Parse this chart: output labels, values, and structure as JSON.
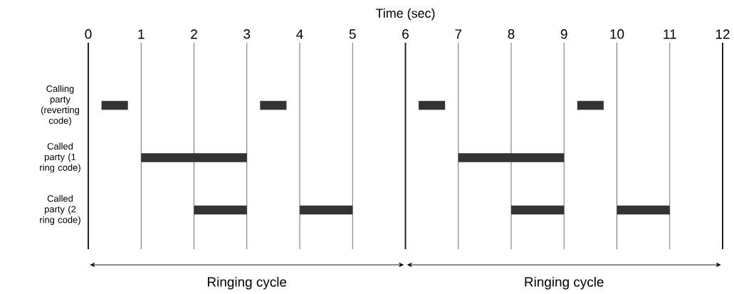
{
  "chart_data": {
    "type": "bar",
    "orientation": "horizontal",
    "xlabel": "Time (sec)",
    "categories": [
      "Calling party (reverting code)",
      "Called party (1 ring code)",
      "Called party (2 ring code)"
    ],
    "series": [
      {
        "color": "#333333",
        "base": [
          0.25,
          1,
          2
        ],
        "values": [
          0.5,
          2,
          1
        ]
      },
      {
        "color": "#333333",
        "base": [
          3.25,
          7,
          4
        ],
        "values": [
          0.5,
          2,
          1
        ]
      },
      {
        "color": "#333333",
        "base": [
          6.25,
          null,
          8
        ],
        "values": [
          0.5,
          null,
          1
        ]
      },
      {
        "color": "#333333",
        "base": [
          9.25,
          null,
          10
        ],
        "values": [
          0.5,
          null,
          1
        ]
      }
    ],
    "xlim": [
      0,
      12
    ],
    "xticks": [
      0,
      1,
      2,
      3,
      4,
      5,
      6,
      7,
      8,
      9,
      10,
      11,
      12
    ],
    "grid": "x",
    "ref_lines": [
      {
        "axis": "x",
        "value": 6,
        "color": "#222222"
      }
    ],
    "annotations": [
      "Ringing cycle",
      "Ringing cycle"
    ]
  }
}
